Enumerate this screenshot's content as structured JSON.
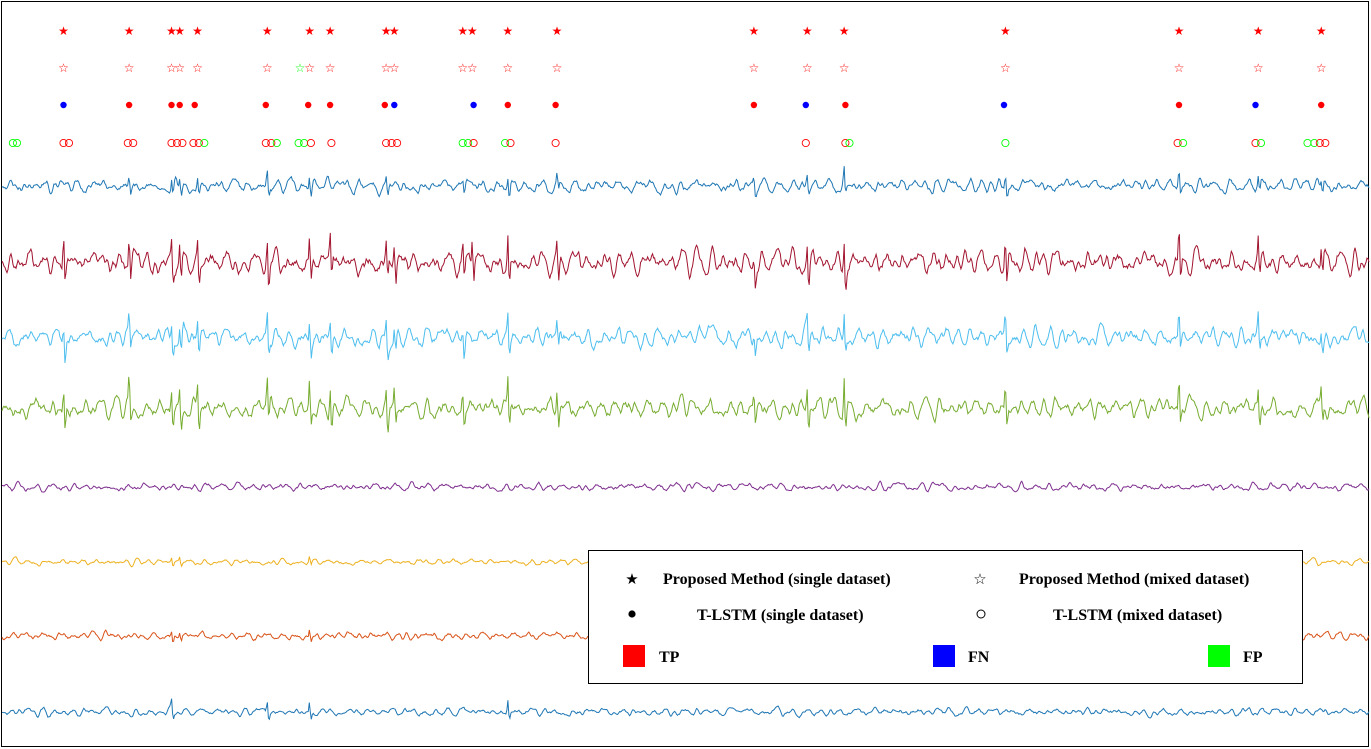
{
  "chart_data": {
    "type": "line",
    "title": "",
    "xlabel": "",
    "ylabel": "",
    "grid": false,
    "legend_position": "bottom-right",
    "x_range": [
      0,
      1000
    ],
    "event_markers": {
      "proposed_single": [
        {
          "x": 45,
          "c": "TP"
        },
        {
          "x": 93,
          "c": "TP"
        },
        {
          "x": 124,
          "c": "TP"
        },
        {
          "x": 130,
          "c": "TP"
        },
        {
          "x": 143,
          "c": "TP"
        },
        {
          "x": 194,
          "c": "TP"
        },
        {
          "x": 225,
          "c": "TP"
        },
        {
          "x": 240,
          "c": "TP"
        },
        {
          "x": 281,
          "c": "TP"
        },
        {
          "x": 287,
          "c": "TP"
        },
        {
          "x": 337,
          "c": "TP"
        },
        {
          "x": 344,
          "c": "TP"
        },
        {
          "x": 370,
          "c": "TP"
        },
        {
          "x": 406,
          "c": "TP"
        },
        {
          "x": 550,
          "c": "TP"
        },
        {
          "x": 589,
          "c": "TP"
        },
        {
          "x": 616,
          "c": "TP"
        },
        {
          "x": 734,
          "c": "TP"
        },
        {
          "x": 861,
          "c": "TP"
        },
        {
          "x": 919,
          "c": "TP"
        },
        {
          "x": 965,
          "c": "TP"
        }
      ],
      "proposed_mixed": [
        {
          "x": 45,
          "c": "TP"
        },
        {
          "x": 93,
          "c": "TP"
        },
        {
          "x": 124,
          "c": "TP"
        },
        {
          "x": 130,
          "c": "TP"
        },
        {
          "x": 143,
          "c": "TP"
        },
        {
          "x": 194,
          "c": "TP"
        },
        {
          "x": 218,
          "c": "FP"
        },
        {
          "x": 225,
          "c": "TP"
        },
        {
          "x": 240,
          "c": "TP"
        },
        {
          "x": 281,
          "c": "TP"
        },
        {
          "x": 287,
          "c": "TP"
        },
        {
          "x": 337,
          "c": "TP"
        },
        {
          "x": 344,
          "c": "TP"
        },
        {
          "x": 370,
          "c": "TP"
        },
        {
          "x": 406,
          "c": "TP"
        },
        {
          "x": 550,
          "c": "TP"
        },
        {
          "x": 589,
          "c": "TP"
        },
        {
          "x": 616,
          "c": "TP"
        },
        {
          "x": 734,
          "c": "TP"
        },
        {
          "x": 861,
          "c": "TP"
        },
        {
          "x": 919,
          "c": "TP"
        },
        {
          "x": 965,
          "c": "TP"
        }
      ],
      "tlstm_single": [
        {
          "x": 45,
          "c": "FN"
        },
        {
          "x": 93,
          "c": "TP"
        },
        {
          "x": 124,
          "c": "TP"
        },
        {
          "x": 130,
          "c": "TP"
        },
        {
          "x": 141,
          "c": "TP"
        },
        {
          "x": 193,
          "c": "TP"
        },
        {
          "x": 224,
          "c": "TP"
        },
        {
          "x": 240,
          "c": "TP"
        },
        {
          "x": 280,
          "c": "TP"
        },
        {
          "x": 287,
          "c": "FN"
        },
        {
          "x": 345,
          "c": "FN"
        },
        {
          "x": 370,
          "c": "TP"
        },
        {
          "x": 405,
          "c": "TP"
        },
        {
          "x": 550,
          "c": "TP"
        },
        {
          "x": 588,
          "c": "FN"
        },
        {
          "x": 617,
          "c": "TP"
        },
        {
          "x": 733,
          "c": "FN"
        },
        {
          "x": 861,
          "c": "TP"
        },
        {
          "x": 917,
          "c": "FN"
        },
        {
          "x": 965,
          "c": "TP"
        }
      ],
      "tlstm_mixed": [
        {
          "x": 8,
          "c": "FP"
        },
        {
          "x": 11,
          "c": "FP"
        },
        {
          "x": 45,
          "c": "TP"
        },
        {
          "x": 49,
          "c": "TP"
        },
        {
          "x": 92,
          "c": "TP"
        },
        {
          "x": 96,
          "c": "TP"
        },
        {
          "x": 124,
          "c": "TP"
        },
        {
          "x": 128,
          "c": "TP"
        },
        {
          "x": 132,
          "c": "TP"
        },
        {
          "x": 140,
          "c": "TP"
        },
        {
          "x": 144,
          "c": "TP"
        },
        {
          "x": 148,
          "c": "FP"
        },
        {
          "x": 193,
          "c": "TP"
        },
        {
          "x": 197,
          "c": "TP"
        },
        {
          "x": 201,
          "c": "FP"
        },
        {
          "x": 217,
          "c": "FP"
        },
        {
          "x": 221,
          "c": "FP"
        },
        {
          "x": 226,
          "c": "TP"
        },
        {
          "x": 241,
          "c": "TP"
        },
        {
          "x": 281,
          "c": "TP"
        },
        {
          "x": 285,
          "c": "TP"
        },
        {
          "x": 289,
          "c": "TP"
        },
        {
          "x": 337,
          "c": "FP"
        },
        {
          "x": 341,
          "c": "FP"
        },
        {
          "x": 345,
          "c": "TP"
        },
        {
          "x": 368,
          "c": "FP"
        },
        {
          "x": 372,
          "c": "TP"
        },
        {
          "x": 405,
          "c": "TP"
        },
        {
          "x": 588,
          "c": "TP"
        },
        {
          "x": 617,
          "c": "TP"
        },
        {
          "x": 620,
          "c": "FP"
        },
        {
          "x": 734,
          "c": "FP"
        },
        {
          "x": 860,
          "c": "TP"
        },
        {
          "x": 864,
          "c": "FP"
        },
        {
          "x": 917,
          "c": "TP"
        },
        {
          "x": 921,
          "c": "FP"
        },
        {
          "x": 955,
          "c": "FP"
        },
        {
          "x": 960,
          "c": "FP"
        },
        {
          "x": 964,
          "c": "TP"
        },
        {
          "x": 968,
          "c": "TP"
        }
      ]
    },
    "signals": [
      {
        "color": "#1f77b4",
        "amp": 7,
        "spikes": [
          93,
          124,
          130,
          143,
          194,
          225,
          281,
          337,
          370,
          406,
          550,
          589,
          616,
          734,
          861,
          919,
          965
        ],
        "spike_amp": 16
      },
      {
        "color": "#a2142f",
        "amp": 12,
        "spikes": [
          45,
          93,
          124,
          130,
          143,
          194,
          225,
          240,
          281,
          287,
          337,
          344,
          370,
          406,
          550,
          589,
          616,
          734,
          861,
          919,
          965
        ],
        "spike_amp": 34
      },
      {
        "color": "#4dbeee",
        "amp": 10,
        "spikes": [
          45,
          93,
          124,
          130,
          143,
          194,
          225,
          240,
          281,
          287,
          337,
          370,
          406,
          550,
          589,
          616,
          734,
          861,
          919,
          965
        ],
        "spike_amp": 28
      },
      {
        "color": "#77ac30",
        "amp": 10,
        "spikes": [
          45,
          93,
          124,
          130,
          143,
          194,
          225,
          240,
          281,
          287,
          337,
          370,
          406,
          550,
          589,
          616,
          734,
          861,
          919,
          965
        ],
        "spike_amp": 34
      },
      {
        "color": "#7e2f8e",
        "amp": 4,
        "spikes": [],
        "spike_amp": 0
      },
      {
        "color": "#edb120",
        "amp": 3,
        "spikes": [
          124,
          130,
          225
        ],
        "spike_amp": 7
      },
      {
        "color": "#d95319",
        "amp": 4,
        "spikes": [
          124,
          130,
          225
        ],
        "spike_amp": 9
      },
      {
        "color": "#1f77b4",
        "amp": 4,
        "spikes": [
          124,
          194,
          225,
          370
        ],
        "spike_amp": 13
      }
    ],
    "legend": {
      "proposed_single": "Proposed Method (single dataset)",
      "proposed_mixed": "Proposed Method (mixed dataset)",
      "tlstm_single": "T-LSTM (single dataset)",
      "tlstm_mixed": "T-LSTM (mixed dataset)",
      "tp": "TP",
      "fn": "FN",
      "fp": "FP"
    },
    "class_colors": {
      "TP": "#ff0000",
      "FN": "#0000ff",
      "FP": "#00ff00"
    }
  }
}
